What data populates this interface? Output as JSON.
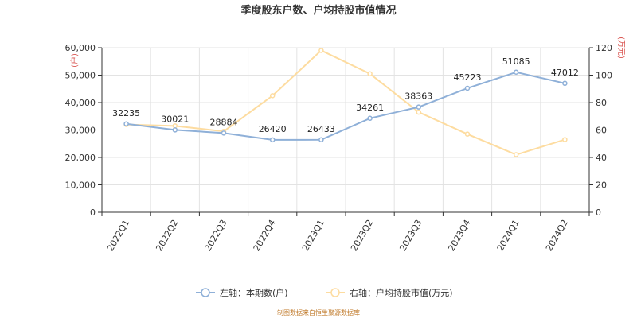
{
  "chart_data": {
    "type": "line",
    "title": "季度股东户数、户均持股市值情况",
    "categories": [
      "2022Q1",
      "2022Q2",
      "2022Q3",
      "2022Q4",
      "2023Q1",
      "2023Q2",
      "2023Q3",
      "2023Q4",
      "2024Q1",
      "2024Q2"
    ],
    "series": [
      {
        "name": "左轴：本期数(户)",
        "axis": "left",
        "color": "#8fb0d8",
        "values": [
          32235,
          30021,
          28884,
          26420,
          26433,
          34261,
          38363,
          45223,
          51085,
          47012
        ],
        "labels": [
          "32235",
          "30021",
          "28884",
          "26420",
          "26433",
          "34261",
          "38363",
          "45223",
          "51085",
          "47012"
        ]
      },
      {
        "name": "右轴：户均持股市值(万元)",
        "axis": "right",
        "color": "#fddca0",
        "values": [
          64,
          63,
          59,
          85,
          118,
          101,
          73,
          57,
          42,
          53
        ]
      }
    ],
    "y_left": {
      "min": 0,
      "max": 60000,
      "step": 10000,
      "unit": "(户)",
      "tick_labels": [
        "0",
        "10,000",
        "20,000",
        "30,000",
        "40,000",
        "50,000",
        "60,000"
      ]
    },
    "y_right": {
      "min": 0,
      "max": 120,
      "step": 20,
      "unit": "(万元)",
      "tick_labels": [
        "0",
        "20",
        "40",
        "60",
        "80",
        "100",
        "120"
      ]
    },
    "grid": true,
    "legend_position": "bottom-center",
    "source": "制图数据来自恒生聚源数据库"
  }
}
